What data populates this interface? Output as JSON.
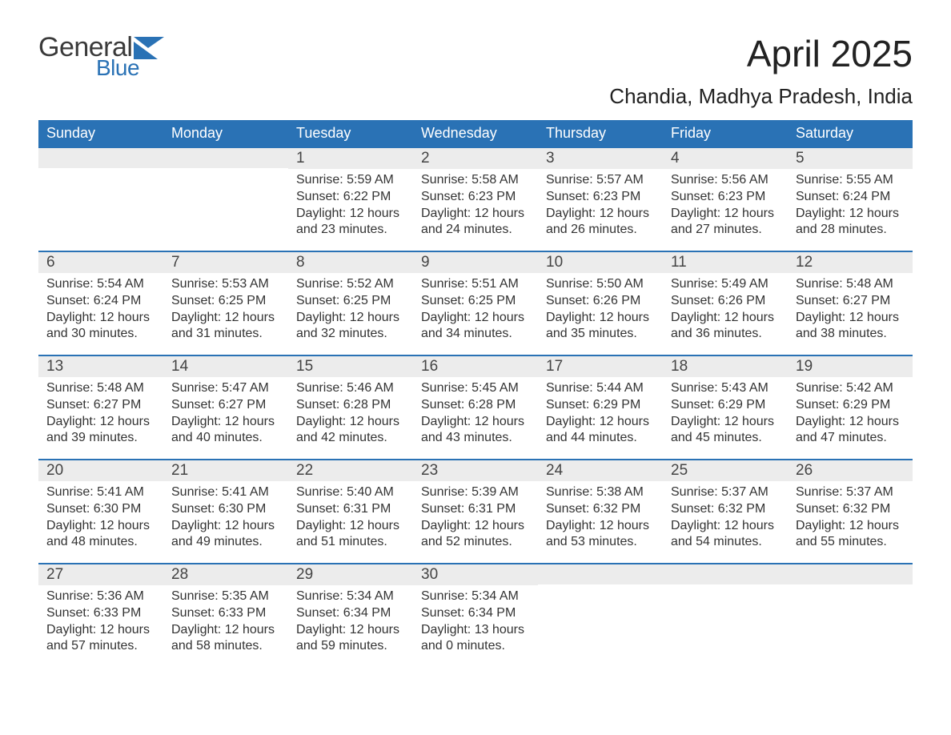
{
  "logo": {
    "top": "General",
    "bottom": "Blue"
  },
  "title": "April 2025",
  "subtitle": "Chandia, Madhya Pradesh, India",
  "colors": {
    "header_bg": "#2a72b5",
    "header_text": "#ffffff",
    "daynum_bg": "#ececec",
    "daynum_border": "#2a72b5",
    "body_text": "#333333",
    "page_bg": "#ffffff",
    "logo_gray": "#3a3a3a",
    "logo_blue": "#2a72b5"
  },
  "day_names": [
    "Sunday",
    "Monday",
    "Tuesday",
    "Wednesday",
    "Thursday",
    "Friday",
    "Saturday"
  ],
  "weeks": [
    [
      null,
      null,
      {
        "n": "1",
        "sr": "5:59 AM",
        "ss": "6:22 PM",
        "dl": "12 hours and 23 minutes."
      },
      {
        "n": "2",
        "sr": "5:58 AM",
        "ss": "6:23 PM",
        "dl": "12 hours and 24 minutes."
      },
      {
        "n": "3",
        "sr": "5:57 AM",
        "ss": "6:23 PM",
        "dl": "12 hours and 26 minutes."
      },
      {
        "n": "4",
        "sr": "5:56 AM",
        "ss": "6:23 PM",
        "dl": "12 hours and 27 minutes."
      },
      {
        "n": "5",
        "sr": "5:55 AM",
        "ss": "6:24 PM",
        "dl": "12 hours and 28 minutes."
      }
    ],
    [
      {
        "n": "6",
        "sr": "5:54 AM",
        "ss": "6:24 PM",
        "dl": "12 hours and 30 minutes."
      },
      {
        "n": "7",
        "sr": "5:53 AM",
        "ss": "6:25 PM",
        "dl": "12 hours and 31 minutes."
      },
      {
        "n": "8",
        "sr": "5:52 AM",
        "ss": "6:25 PM",
        "dl": "12 hours and 32 minutes."
      },
      {
        "n": "9",
        "sr": "5:51 AM",
        "ss": "6:25 PM",
        "dl": "12 hours and 34 minutes."
      },
      {
        "n": "10",
        "sr": "5:50 AM",
        "ss": "6:26 PM",
        "dl": "12 hours and 35 minutes."
      },
      {
        "n": "11",
        "sr": "5:49 AM",
        "ss": "6:26 PM",
        "dl": "12 hours and 36 minutes."
      },
      {
        "n": "12",
        "sr": "5:48 AM",
        "ss": "6:27 PM",
        "dl": "12 hours and 38 minutes."
      }
    ],
    [
      {
        "n": "13",
        "sr": "5:48 AM",
        "ss": "6:27 PM",
        "dl": "12 hours and 39 minutes."
      },
      {
        "n": "14",
        "sr": "5:47 AM",
        "ss": "6:27 PM",
        "dl": "12 hours and 40 minutes."
      },
      {
        "n": "15",
        "sr": "5:46 AM",
        "ss": "6:28 PM",
        "dl": "12 hours and 42 minutes."
      },
      {
        "n": "16",
        "sr": "5:45 AM",
        "ss": "6:28 PM",
        "dl": "12 hours and 43 minutes."
      },
      {
        "n": "17",
        "sr": "5:44 AM",
        "ss": "6:29 PM",
        "dl": "12 hours and 44 minutes."
      },
      {
        "n": "18",
        "sr": "5:43 AM",
        "ss": "6:29 PM",
        "dl": "12 hours and 45 minutes."
      },
      {
        "n": "19",
        "sr": "5:42 AM",
        "ss": "6:29 PM",
        "dl": "12 hours and 47 minutes."
      }
    ],
    [
      {
        "n": "20",
        "sr": "5:41 AM",
        "ss": "6:30 PM",
        "dl": "12 hours and 48 minutes."
      },
      {
        "n": "21",
        "sr": "5:41 AM",
        "ss": "6:30 PM",
        "dl": "12 hours and 49 minutes."
      },
      {
        "n": "22",
        "sr": "5:40 AM",
        "ss": "6:31 PM",
        "dl": "12 hours and 51 minutes."
      },
      {
        "n": "23",
        "sr": "5:39 AM",
        "ss": "6:31 PM",
        "dl": "12 hours and 52 minutes."
      },
      {
        "n": "24",
        "sr": "5:38 AM",
        "ss": "6:32 PM",
        "dl": "12 hours and 53 minutes."
      },
      {
        "n": "25",
        "sr": "5:37 AM",
        "ss": "6:32 PM",
        "dl": "12 hours and 54 minutes."
      },
      {
        "n": "26",
        "sr": "5:37 AM",
        "ss": "6:32 PM",
        "dl": "12 hours and 55 minutes."
      }
    ],
    [
      {
        "n": "27",
        "sr": "5:36 AM",
        "ss": "6:33 PM",
        "dl": "12 hours and 57 minutes."
      },
      {
        "n": "28",
        "sr": "5:35 AM",
        "ss": "6:33 PM",
        "dl": "12 hours and 58 minutes."
      },
      {
        "n": "29",
        "sr": "5:34 AM",
        "ss": "6:34 PM",
        "dl": "12 hours and 59 minutes."
      },
      {
        "n": "30",
        "sr": "5:34 AM",
        "ss": "6:34 PM",
        "dl": "13 hours and 0 minutes."
      },
      null,
      null,
      null
    ]
  ],
  "labels": {
    "sunrise": "Sunrise: ",
    "sunset": "Sunset: ",
    "daylight": "Daylight: "
  }
}
